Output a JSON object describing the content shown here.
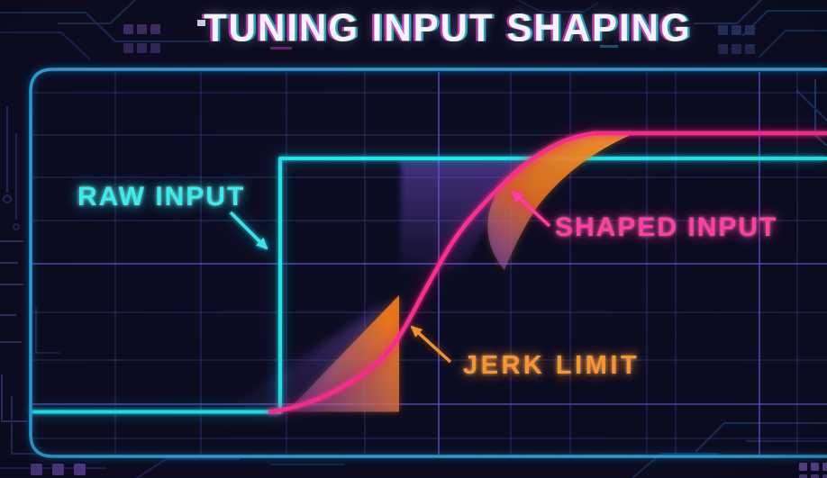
{
  "title": {
    "text": "TUNING INPUT SHAPING"
  },
  "panel": {
    "background": "#0c0c22",
    "border_color": "#2aa6dc",
    "grid_color": "#3c3c8e"
  },
  "annotations": {
    "raw_input": {
      "label": "RAW INPUT",
      "color": "#3fe9ea",
      "arrow_target": "vertical step edge of the raw input line"
    },
    "shaped_input": {
      "label": "SHAPED INPUT",
      "color": "#ff3fa1",
      "arrow_target": "rising s-curve"
    },
    "jerk_limit": {
      "label": "JERK LIMIT",
      "color": "#f9952f",
      "arrow_target": "slope band at the curve inflection"
    }
  },
  "curves": {
    "raw_input": {
      "type": "step",
      "color": "#22e8f0",
      "shape": "flat low, instant vertical step, flat high to right edge"
    },
    "shaped_input": {
      "type": "s_curve",
      "color": "#ff2f90",
      "shape": "jerk-limited sigmoid rising from low level to above raw level"
    },
    "jerk_limit_bands": {
      "color": "#f5861f",
      "secondary_color": "#8a55d6",
      "shape": "orange slope bands with purple haze hugging the s-curve"
    }
  }
}
